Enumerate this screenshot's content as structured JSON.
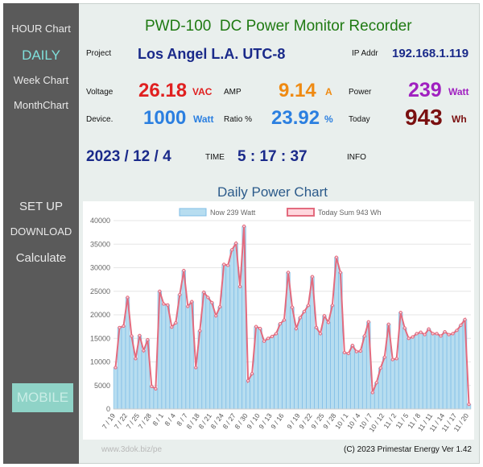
{
  "sidebar": {
    "hour_chart": "HOUR Chart",
    "daily": "DAILY",
    "week_chart": "Week Chart",
    "month_chart": "MonthChart",
    "setup": "SET UP",
    "download": "DOWNLOAD",
    "calculate": "Calculate",
    "mobile": "MOBILE"
  },
  "header": {
    "title": "PWD-100  DC Power Monitor Recorder"
  },
  "project": {
    "label": "Project",
    "value": "Los Angel L.A. UTC-8"
  },
  "ip": {
    "label": "IP Addr",
    "value": "192.168.1.119"
  },
  "voltage": {
    "label": "Voltage",
    "value": "26.18",
    "unit": "VAC"
  },
  "amp": {
    "label": "AMP",
    "value": "9.14",
    "unit": "A"
  },
  "power": {
    "label": "Power",
    "value": "239",
    "unit": "Watt"
  },
  "device": {
    "label": "Device.",
    "value": "1000",
    "unit": "Watt"
  },
  "ratio": {
    "label": "Ratio %",
    "value": "23.92",
    "unit": "%"
  },
  "today": {
    "label": "Today",
    "value": "943",
    "unit": "Wh"
  },
  "date": "2023 / 12 / 4",
  "time": {
    "label": "TIME",
    "value": "5 : 17 : 37"
  },
  "info": {
    "label": "INFO"
  },
  "footer": {
    "site": "www.3dok.biz/pe",
    "copyright": "(C) 2023 Primestar Energy   Ver 1.42"
  },
  "colors": {
    "bar_fill": "#b7ddf0",
    "bar_stroke": "#7fbde6",
    "line": "#e36b7e",
    "point": "#ffd6dd",
    "grid": "#e6e6e6"
  },
  "chart_data": {
    "type": "bar",
    "title": "Daily Power Chart",
    "legend": {
      "position": "top",
      "bar_label": "Now 239 Watt",
      "line_label": "Today Sum 943 Wh"
    },
    "ylim": [
      0,
      40000
    ],
    "yticks": [
      0,
      5000,
      10000,
      15000,
      20000,
      25000,
      30000,
      35000,
      40000
    ],
    "x_tick_labels": [
      "7 / 19",
      "7 / 22",
      "7 / 25",
      "7 / 28",
      "8 / 1",
      "8 / 4",
      "8 / 7",
      "8 / 18",
      "8 / 21",
      "8 / 24",
      "8 / 27",
      "8 / 30",
      "9 / 10",
      "9 / 13",
      "9 / 16",
      "9 / 19",
      "9 / 22",
      "9 / 25",
      "9 / 28",
      "10 / 1",
      "10 / 4",
      "10 / 7",
      "10 / 12",
      "11 / 2",
      "11 / 5",
      "11 / 8",
      "11 / 11",
      "11 / 14",
      "11 / 17",
      "11 / 20"
    ],
    "values": [
      8800,
      17300,
      17600,
      23700,
      15500,
      10700,
      15600,
      12400,
      14700,
      4800,
      4300,
      25000,
      22300,
      22100,
      17400,
      18300,
      24300,
      29400,
      21800,
      22800,
      8800,
      16600,
      24800,
      23700,
      22600,
      19800,
      21700,
      30700,
      30500,
      33800,
      35200,
      26000,
      38800,
      6000,
      7500,
      17500,
      17100,
      14400,
      15000,
      15400,
      16000,
      18100,
      18900,
      29000,
      21600,
      17100,
      19400,
      20700,
      22000,
      28100,
      17300,
      16000,
      19800,
      18400,
      22000,
      32200,
      29000,
      12000,
      11800,
      13500,
      12200,
      12300,
      15500,
      18500,
      3500,
      5600,
      8700,
      11000,
      18000,
      10500,
      10700,
      20500,
      17200,
      15000,
      15300,
      16000,
      16300,
      15800,
      17000,
      16000,
      16000,
      15500,
      16400,
      15800,
      16000,
      16700,
      17800,
      19000,
      1000
    ]
  }
}
